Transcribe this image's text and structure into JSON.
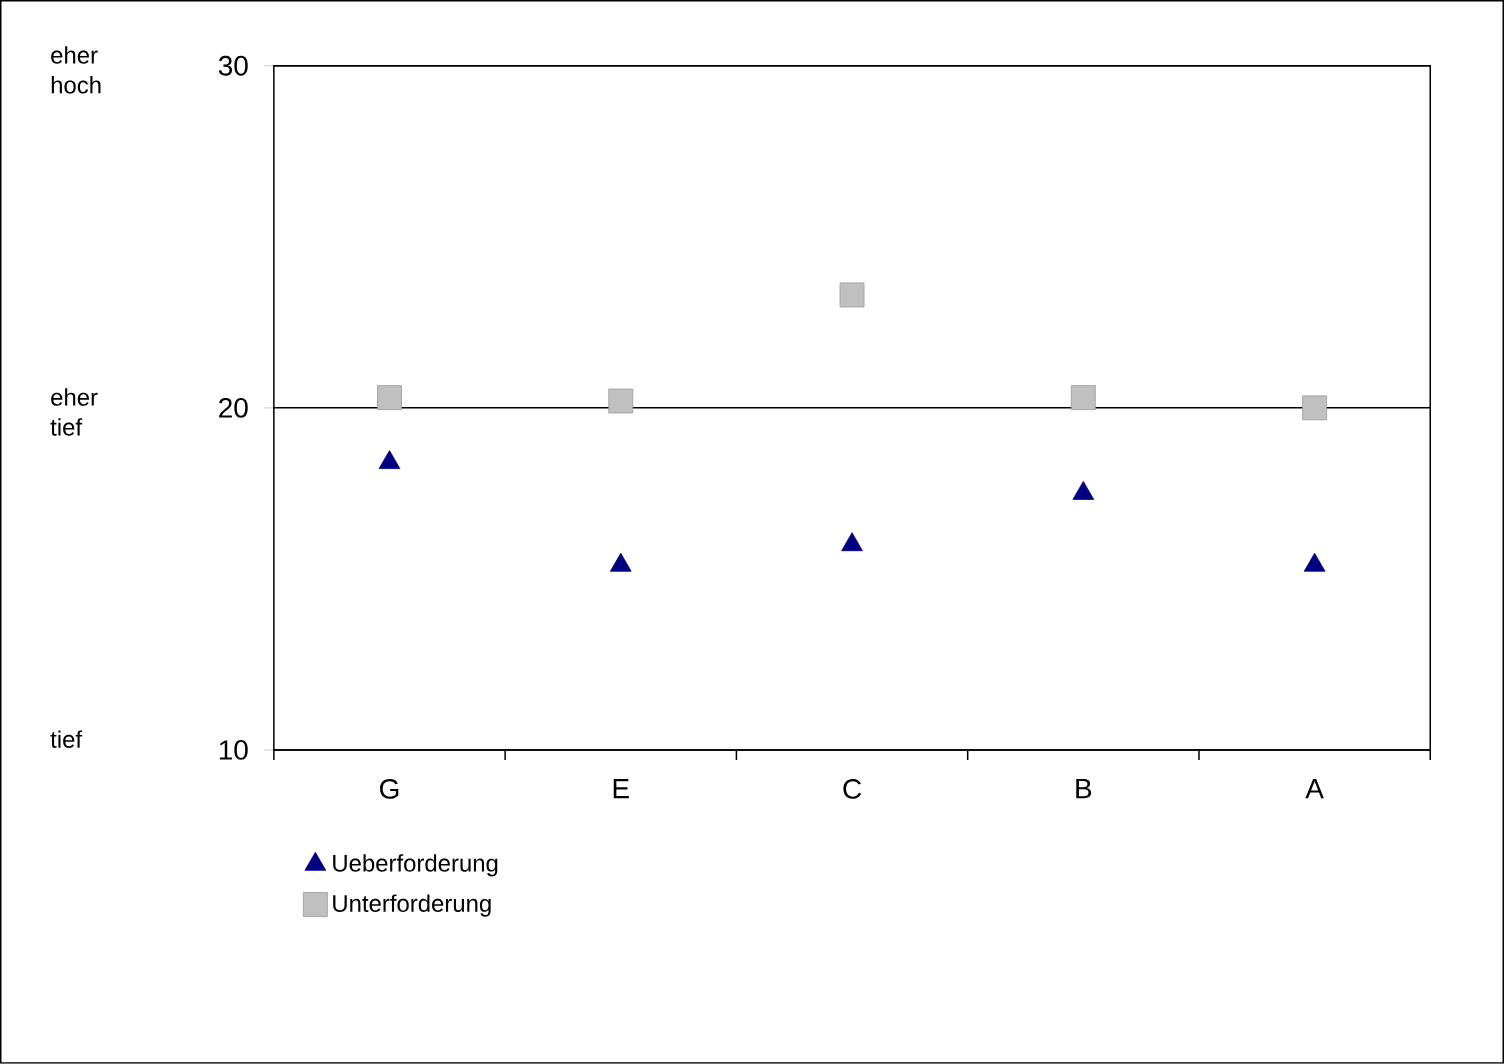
{
  "chart_data": {
    "type": "scatter",
    "categories": [
      "G",
      "E",
      "C",
      "B",
      "A"
    ],
    "series": [
      {
        "name": "Ueberforderung",
        "color": "#000080",
        "marker": "triangle",
        "values": [
          18.4,
          15.4,
          16.0,
          17.5,
          15.4
        ]
      },
      {
        "name": "Unterforderung",
        "color": "#c0c0c0",
        "marker": "square",
        "values": [
          20.3,
          20.2,
          23.3,
          20.3,
          20.0
        ]
      }
    ],
    "ylim": [
      10,
      30
    ],
    "yticks": [
      10,
      20,
      30
    ],
    "grid": "y",
    "legend": "bottom",
    "annotations": [
      "eher hoch",
      "eher tief",
      "tief"
    ]
  }
}
